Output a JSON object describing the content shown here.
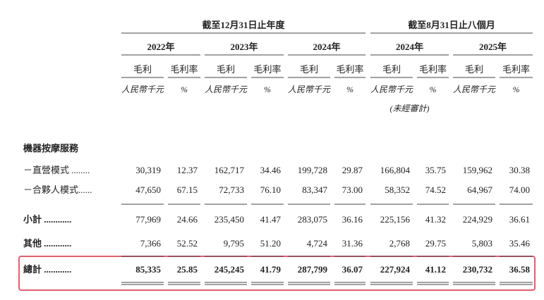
{
  "table": {
    "group_headers": [
      "截至12月31日止年度",
      "截至8月31日止八個月"
    ],
    "years": [
      "2022年",
      "2023年",
      "2024年",
      "2024年",
      "2025年"
    ],
    "column_headers": [
      "毛利",
      "毛利率",
      "毛利",
      "毛利率",
      "毛利",
      "毛利率",
      "毛利",
      "毛利率",
      "毛利",
      "毛利率"
    ],
    "units": [
      "人民幣千元",
      "%",
      "人民幣千元",
      "%",
      "人民幣千元",
      "%",
      "人民幣千元",
      "%",
      "人民幣千元",
      "%"
    ],
    "unaudited_note": "(未經審計)",
    "section": "機器按摩服務",
    "rows": [
      {
        "label": "－直營模式 ........",
        "cells": [
          "30,319",
          "12.37",
          "162,717",
          "34.46",
          "199,728",
          "29.87",
          "166,804",
          "35.75",
          "159,962",
          "30.38"
        ]
      },
      {
        "label": "－合夥人模式......",
        "cells": [
          "47,650",
          "67.15",
          "72,733",
          "76.10",
          "83,347",
          "73.00",
          "58,352",
          "74.52",
          "64,967",
          "74.00"
        ]
      },
      {
        "label": "小計 ............",
        "cells": [
          "77,969",
          "24.66",
          "235,450",
          "41.47",
          "283,075",
          "36.16",
          "225,156",
          "41.32",
          "224,929",
          "36.61"
        ]
      },
      {
        "label": "其他 ............",
        "cells": [
          "7,366",
          "52.52",
          "9,795",
          "51.20",
          "4,724",
          "31.36",
          "2,768",
          "29.75",
          "5,803",
          "35.46"
        ]
      },
      {
        "label": "總計 ............",
        "cells": [
          "85,335",
          "25.85",
          "245,245",
          "41.79",
          "287,799",
          "36.07",
          "227,924",
          "41.12",
          "230,732",
          "36.58"
        ]
      }
    ]
  }
}
